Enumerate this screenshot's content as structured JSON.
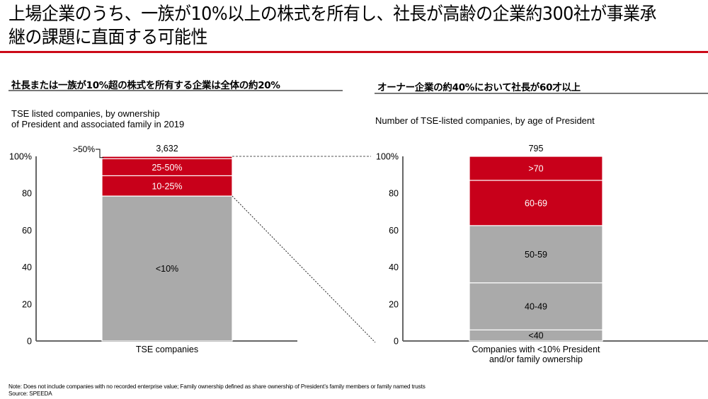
{
  "title": "上場企業のうち、一族が10%以上の株式を所有し、社長が高齢の企業約300社が事業承継の課題に直面する可能性",
  "colors": {
    "accent_red": "#cc0a18",
    "bar_red": "#c8001a",
    "bar_gray": "#aaaaaa",
    "axis": "#666666"
  },
  "left_panel": {
    "heading": "社長または一族が10%超の株式を所有する企業は全体の約20%",
    "subtitle": "TSE listed companies, by ownership\nof President and associated family in 2019"
  },
  "right_panel": {
    "heading": "オーナー企業の約40%において社長が60才以上",
    "subtitle": "Number of TSE-listed companies, by age of President"
  },
  "chart_data": [
    {
      "type": "bar",
      "stacked": true,
      "title": "TSE listed companies, by ownership of President and associated family in 2019",
      "categories": [
        "TSE companies"
      ],
      "total_label": "3,632",
      "ylim": [
        0,
        100
      ],
      "yticks": [
        "0",
        "20",
        "40",
        "60",
        "80",
        "100%"
      ],
      "series": [
        {
          "name": "<10%",
          "values": [
            78.5
          ],
          "color": "gray",
          "label_inside": true
        },
        {
          "name": "10-25%",
          "values": [
            11.0
          ],
          "color": "red",
          "label_inside": true
        },
        {
          "name": "25-50%",
          "values": [
            9.2
          ],
          "color": "red",
          "label_inside": true
        },
        {
          "name": ">50%",
          "values": [
            1.3
          ],
          "color": "red",
          "label_inside": false
        }
      ]
    },
    {
      "type": "bar",
      "stacked": true,
      "title": "Number of TSE-listed companies, by age of President",
      "categories": [
        "Companies with <10% President\nand/or family ownership"
      ],
      "total_label": "795",
      "ylim": [
        0,
        100
      ],
      "yticks": [
        "0",
        "20",
        "40",
        "60",
        "80",
        "100%"
      ],
      "series": [
        {
          "name": "<40",
          "values": [
            6.0
          ],
          "color": "gray",
          "label_inside": true
        },
        {
          "name": "40-49",
          "values": [
            25.5
          ],
          "color": "gray",
          "label_inside": true
        },
        {
          "name": "50-59",
          "values": [
            31.0
          ],
          "color": "gray",
          "label_inside": true
        },
        {
          "name": "60-69",
          "values": [
            24.5
          ],
          "color": "red",
          "label_inside": true
        },
        {
          "name": ">70",
          "values": [
            13.0
          ],
          "color": "red",
          "label_inside": true
        }
      ]
    }
  ],
  "footnote": {
    "note": "Note: Does not include companies with no recorded enterprise value; Family ownership defined as share ownership of President’s family members or family named trusts",
    "source": "Source: SPEEDA"
  }
}
